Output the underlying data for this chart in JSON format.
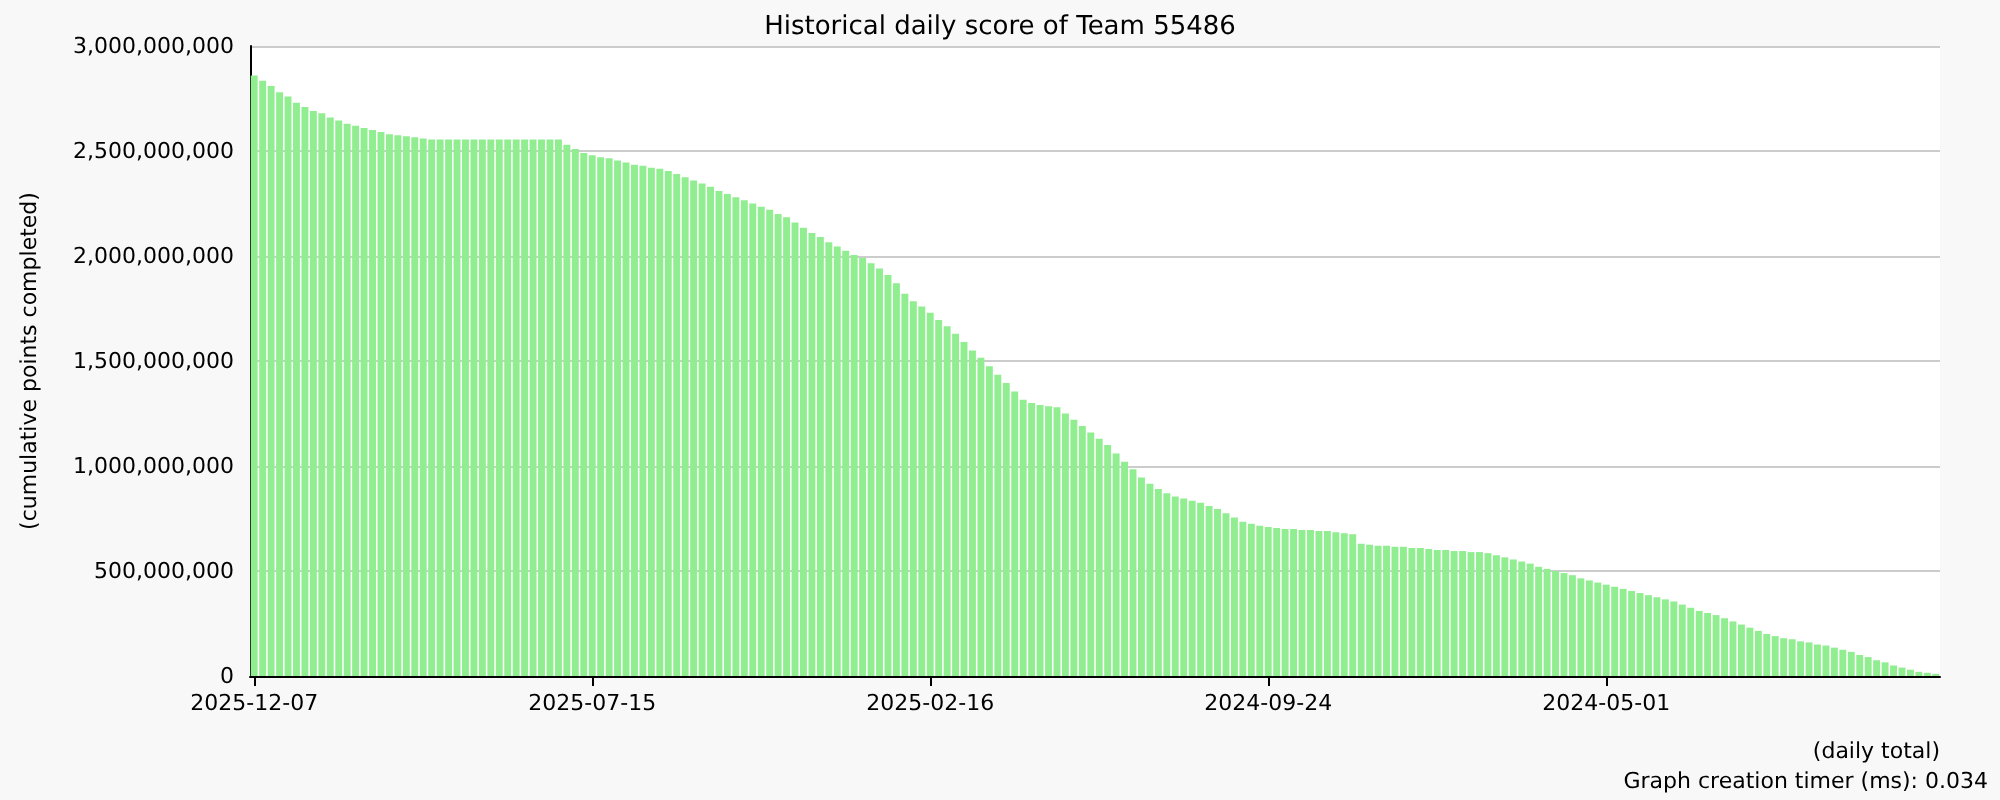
{
  "chart_data": {
    "type": "bar",
    "title": "Historical daily score of Team 55486",
    "xlabel": "(daily total)",
    "ylabel": "(cumulative points completed)",
    "annotations": [
      "Graph creation timer (ms): 0.034"
    ],
    "categories": [
      "2025-12-07",
      null,
      null,
      null,
      null,
      null,
      null,
      null,
      null,
      null,
      null,
      null,
      null,
      null,
      null,
      null,
      null,
      null,
      null,
      null,
      null,
      null,
      null,
      null,
      null,
      null,
      null,
      null,
      null,
      null,
      null,
      null,
      null,
      null,
      null,
      null,
      null,
      null,
      null,
      null,
      "2025-07-15",
      null,
      null,
      null,
      null,
      null,
      null,
      null,
      null,
      null,
      null,
      null,
      null,
      null,
      null,
      null,
      null,
      null,
      null,
      null,
      null,
      null,
      null,
      null,
      null,
      null,
      null,
      null,
      null,
      null,
      null,
      null,
      null,
      null,
      null,
      null,
      null,
      null,
      null,
      null,
      "2025-02-16",
      null,
      null,
      null,
      null,
      null,
      null,
      null,
      null,
      null,
      null,
      null,
      null,
      null,
      null,
      null,
      null,
      null,
      null,
      null,
      null,
      null,
      null,
      null,
      null,
      null,
      null,
      null,
      null,
      null,
      null,
      null,
      null,
      null,
      null,
      null,
      null,
      null,
      null,
      null,
      "2024-09-24",
      null,
      null,
      null,
      null,
      null,
      null,
      null,
      null,
      null,
      null,
      null,
      null,
      null,
      null,
      null,
      null,
      null,
      null,
      null,
      null,
      null,
      null,
      null,
      null,
      null,
      null,
      null,
      null,
      null,
      null,
      null,
      null,
      null,
      null,
      null,
      null,
      null,
      null,
      null,
      "2024-05-01",
      null,
      null,
      null,
      null,
      null,
      null,
      null,
      null,
      null,
      null,
      null,
      null,
      null,
      null,
      null,
      null,
      null,
      null,
      null,
      null,
      null,
      null,
      null,
      null,
      null,
      null,
      null,
      null,
      null,
      null,
      null,
      null,
      null,
      null,
      null,
      null,
      null,
      null,
      null
    ],
    "values": [
      2860000000.0,
      2835000000.0,
      2810000000.0,
      2780000000.0,
      2760000000.0,
      2730000000.0,
      2710000000.0,
      2690000000.0,
      2680000000.0,
      2660000000.0,
      2645000000.0,
      2630000000.0,
      2620000000.0,
      2610000000.0,
      2600000000.0,
      2590000000.0,
      2580000000.0,
      2575000000.0,
      2570000000.0,
      2565000000.0,
      2560000000.0,
      2555000000.0,
      2555000000.0,
      2555000000.0,
      2555000000.0,
      2555000000.0,
      2555000000.0,
      2555000000.0,
      2555000000.0,
      2555000000.0,
      2555000000.0,
      2555000000.0,
      2555000000.0,
      2555000000.0,
      2555000000.0,
      2555000000.0,
      2555000000.0,
      2530000000.0,
      2510000000.0,
      2490000000.0,
      2480000000.0,
      2470000000.0,
      2465000000.0,
      2455000000.0,
      2445000000.0,
      2435000000.0,
      2430000000.0,
      2420000000.0,
      2415000000.0,
      2405000000.0,
      2390000000.0,
      2375000000.0,
      2360000000.0,
      2345000000.0,
      2330000000.0,
      2310000000.0,
      2295000000.0,
      2280000000.0,
      2265000000.0,
      2250000000.0,
      2235000000.0,
      2220000000.0,
      2200000000.0,
      2185000000.0,
      2160000000.0,
      2135000000.0,
      2110000000.0,
      2090000000.0,
      2065000000.0,
      2045000000.0,
      2025000000.0,
      2005000000.0,
      1990000000.0,
      1965000000.0,
      1940000000.0,
      1910000000.0,
      1870000000.0,
      1820000000.0,
      1785000000.0,
      1760000000.0,
      1730000000.0,
      1695000000.0,
      1665000000.0,
      1630000000.0,
      1590000000.0,
      1550000000.0,
      1515000000.0,
      1475000000.0,
      1435000000.0,
      1395000000.0,
      1355000000.0,
      1315000000.0,
      1300000000.0,
      1290000000.0,
      1285000000.0,
      1280000000.0,
      1250000000.0,
      1220000000.0,
      1190000000.0,
      1160000000.0,
      1130000000.0,
      1100000000.0,
      1060000000.0,
      1020000000.0,
      985000000.0,
      945000000.0,
      915000000.0,
      890000000.0,
      870000000.0,
      855000000.0,
      845000000.0,
      835000000.0,
      825000000.0,
      810000000.0,
      795000000.0,
      775000000.0,
      755000000.0,
      735000000.0,
      725000000.0,
      715000000.0,
      710000000.0,
      705000000.0,
      700000000.0,
      700000000.0,
      695000000.0,
      695000000.0,
      690000000.0,
      690000000.0,
      685000000.0,
      680000000.0,
      675000000.0,
      630000000.0,
      625000000.0,
      620000000.0,
      620000000.0,
      615000000.0,
      615000000.0,
      610000000.0,
      610000000.0,
      605000000.0,
      600000000.0,
      600000000.0,
      595000000.0,
      595000000.0,
      590000000.0,
      590000000.0,
      585000000.0,
      575000000.0,
      565000000.0,
      555000000.0,
      545000000.0,
      535000000.0,
      520000000.0,
      510000000.0,
      500000000.0,
      490000000.0,
      480000000.0,
      465000000.0,
      455000000.0,
      445000000.0,
      435000000.0,
      425000000.0,
      415000000.0,
      405000000.0,
      395000000.0,
      385000000.0,
      375000000.0,
      365000000.0,
      355000000.0,
      340000000.0,
      325000000.0,
      310000000.0,
      300000000.0,
      290000000.0,
      275000000.0,
      260000000.0,
      245000000.0,
      230000000.0,
      215000000.0,
      200000000.0,
      190000000.0,
      180000000.0,
      175000000.0,
      165000000.0,
      160000000.0,
      150000000.0,
      145000000.0,
      135000000.0,
      125000000.0,
      115000000.0,
      100000000.0,
      90000000.0,
      75000000.0,
      65000000.0,
      50000000.0,
      40000000.0,
      30000000.0,
      20000000.0,
      15000000.0,
      10000000.0
    ],
    "color": "#90ee90",
    "ylim": [
      0,
      3000000000
    ],
    "yticks": [
      0,
      {
        "value": 500000000,
        "label": "500,000,000"
      },
      {
        "value": 1000000000,
        "label": "1,000,000,000"
      },
      {
        "value": 1500000000,
        "label": "1,500,000,000"
      },
      {
        "value": 2000000000,
        "label": "2,000,000,000"
      },
      {
        "value": 2500000000,
        "label": "2,500,000,000"
      },
      {
        "value": 3000000000,
        "label": "3,000,000,000"
      }
    ],
    "grid": "y"
  }
}
